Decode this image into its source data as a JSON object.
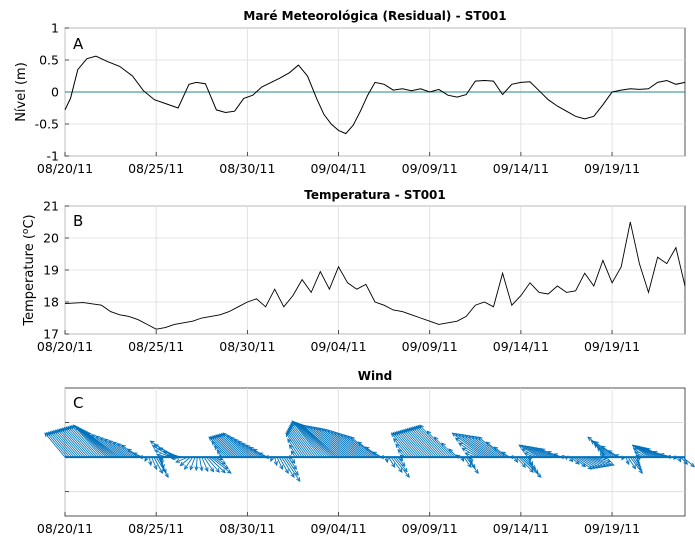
{
  "chart_data": [
    {
      "panel": "A",
      "type": "line",
      "title": "Maré Meteorológica (Residual) - ST001",
      "ylabel": "Nível (m)",
      "xlabel": "",
      "ylim": [
        -1,
        1
      ],
      "yticks": [
        -1,
        -0.5,
        0,
        0.5,
        1
      ],
      "ytick_labels": [
        "-1",
        "-0.5",
        "0",
        "0.5",
        "1"
      ],
      "xlim_days": [
        0,
        34
      ],
      "xtick_days": [
        0,
        5,
        10,
        15,
        20,
        25,
        30
      ],
      "xtick_labels": [
        "08/20/11",
        "08/25/11",
        "08/30/11",
        "09/04/11",
        "09/09/11",
        "09/14/11",
        "09/19/11"
      ],
      "grid": true,
      "reference_line": {
        "y": 0,
        "color": "#1f8a8a"
      },
      "line_color": "#000000",
      "series": [
        {
          "name": "residual",
          "x": [
            0,
            0.3,
            0.7,
            1.2,
            1.7,
            2.3,
            3,
            3.7,
            4.3,
            4.9,
            5.5,
            6.2,
            6.8,
            7.2,
            7.7,
            8.3,
            8.8,
            9.3,
            9.8,
            10.3,
            10.8,
            11.3,
            11.8,
            12.3,
            12.8,
            13.3,
            13.8,
            14.2,
            14.6,
            15,
            15.4,
            15.8,
            16.2,
            16.6,
            17.0,
            17.5,
            18,
            18.5,
            19,
            19.5,
            20,
            20.5,
            21,
            21.5,
            22,
            22.5,
            23,
            23.5,
            24,
            24.5,
            25,
            25.5,
            26,
            26.5,
            27,
            27.5,
            28,
            28.5,
            29,
            29.5,
            30,
            30.5,
            31,
            31.5,
            32,
            32.5,
            33,
            33.5,
            34
          ],
          "y": [
            -0.28,
            -0.1,
            0.35,
            0.52,
            0.56,
            0.48,
            0.4,
            0.25,
            0.02,
            -0.12,
            -0.18,
            -0.25,
            0.12,
            0.15,
            0.13,
            -0.28,
            -0.32,
            -0.3,
            -0.1,
            -0.05,
            0.08,
            0.15,
            0.22,
            0.3,
            0.42,
            0.25,
            -0.1,
            -0.35,
            -0.5,
            -0.6,
            -0.65,
            -0.52,
            -0.3,
            -0.05,
            0.15,
            0.12,
            0.03,
            0.05,
            0.02,
            0.05,
            0.0,
            0.04,
            -0.05,
            -0.08,
            -0.04,
            0.17,
            0.18,
            0.17,
            -0.04,
            0.12,
            0.15,
            0.16,
            0.02,
            -0.12,
            -0.22,
            -0.3,
            -0.38,
            -0.42,
            -0.38,
            -0.2,
            0.0,
            0.03,
            0.05,
            0.04,
            0.05,
            0.15,
            0.18,
            0.12,
            0.15
          ]
        }
      ],
      "panel_label": "A"
    },
    {
      "panel": "B",
      "type": "line",
      "title": "Temperatura - ST001",
      "ylabel": "Temperature (°C)",
      "ylabel_base": "Temperature (",
      "ylabel_sup": "o",
      "ylabel_end": "C)",
      "xlabel": "",
      "ylim": [
        17,
        21
      ],
      "yticks": [
        17,
        18,
        19,
        20,
        21
      ],
      "ytick_labels": [
        "17",
        "18",
        "19",
        "20",
        "21"
      ],
      "xlim_days": [
        0,
        34
      ],
      "xtick_days": [
        0,
        5,
        10,
        15,
        20,
        25,
        30
      ],
      "xtick_labels": [
        "08/20/11",
        "08/25/11",
        "08/30/11",
        "09/04/11",
        "09/09/11",
        "09/14/11",
        "09/19/11"
      ],
      "grid": true,
      "line_color": "#000000",
      "series": [
        {
          "name": "temperature",
          "x": [
            0,
            1,
            2,
            2.5,
            3,
            3.5,
            4,
            4.5,
            5,
            5.5,
            6,
            6.5,
            7,
            7.5,
            8,
            8.5,
            9,
            9.5,
            10,
            10.5,
            11,
            11.5,
            12,
            12.5,
            13,
            13.5,
            14,
            14.5,
            15,
            15.5,
            16,
            16.5,
            17,
            17.5,
            18,
            18.5,
            19,
            19.5,
            20,
            20.5,
            21,
            21.5,
            22,
            22.5,
            23,
            23.5,
            24,
            24.5,
            25,
            25.5,
            26,
            26.5,
            27,
            27.5,
            28,
            28.5,
            29,
            29.5,
            30,
            30.5,
            31,
            31.5,
            32,
            32.5,
            33,
            33.5,
            34
          ],
          "y": [
            17.95,
            17.98,
            17.9,
            17.7,
            17.6,
            17.55,
            17.45,
            17.3,
            17.15,
            17.2,
            17.3,
            17.35,
            17.4,
            17.5,
            17.55,
            17.6,
            17.7,
            17.85,
            18.0,
            18.1,
            17.85,
            18.4,
            17.85,
            18.2,
            18.7,
            18.3,
            18.95,
            18.4,
            19.1,
            18.6,
            18.4,
            18.55,
            18.0,
            17.9,
            17.75,
            17.7,
            17.6,
            17.5,
            17.4,
            17.3,
            17.35,
            17.4,
            17.55,
            17.9,
            18.0,
            17.85,
            18.9,
            17.9,
            18.2,
            18.6,
            18.3,
            18.25,
            18.5,
            18.3,
            18.35,
            18.9,
            18.5,
            19.3,
            18.6,
            19.1,
            20.5,
            19.2,
            18.3,
            19.4,
            19.2,
            19.7,
            18.5
          ]
        }
      ],
      "panel_label": "B"
    },
    {
      "panel": "C",
      "type": "quiver",
      "title": "Wind",
      "xlim_days": [
        0,
        34
      ],
      "xtick_days": [
        0,
        5,
        10,
        15,
        20,
        25,
        30
      ],
      "xtick_labels": [
        "08/20/11",
        "08/25/11",
        "08/30/11",
        "09/04/11",
        "09/09/11",
        "09/14/11",
        "09/19/11"
      ],
      "grid": true,
      "arrow_color": "#0072bd",
      "note": "Stick/arrow plot of wind vectors; components read approximately (u east, v north, arbitrary units).",
      "series": [
        {
          "name": "wind",
          "t": [
            0,
            1,
            2,
            3,
            4,
            5,
            6,
            7,
            8,
            9,
            10,
            11,
            12,
            13,
            14,
            15,
            16,
            17,
            18,
            19,
            20,
            21,
            22,
            23,
            24,
            25,
            26,
            27,
            28,
            29,
            30,
            31,
            32,
            33,
            34
          ],
          "u": [
            -0.5,
            -0.6,
            -0.7,
            -0.8,
            -0.4,
            0.3,
            -0.6,
            -0.2,
            0.5,
            -0.5,
            -0.6,
            -0.3,
            0.4,
            -0.4,
            -0.7,
            -0.9,
            -0.8,
            -0.6,
            0.4,
            -0.5,
            -0.6,
            -0.7,
            0.3,
            -0.8,
            -0.6,
            0.5,
            -0.5,
            -0.4,
            0.4,
            0.5,
            -0.6,
            0.3,
            -0.4,
            -0.5,
            0.4
          ],
          "v": [
            0.6,
            0.7,
            0.8,
            0.6,
            0.3,
            -0.5,
            0.4,
            -0.3,
            -0.4,
            0.5,
            0.6,
            0.2,
            -0.6,
            0.6,
            0.9,
            0.8,
            0.7,
            0.5,
            -0.5,
            0.6,
            0.7,
            0.8,
            -0.4,
            0.6,
            0.5,
            -0.5,
            0.3,
            0.2,
            -0.3,
            -0.2,
            0.5,
            -0.4,
            0.3,
            0.2,
            -0.3
          ]
        }
      ],
      "panel_label": "C"
    }
  ]
}
